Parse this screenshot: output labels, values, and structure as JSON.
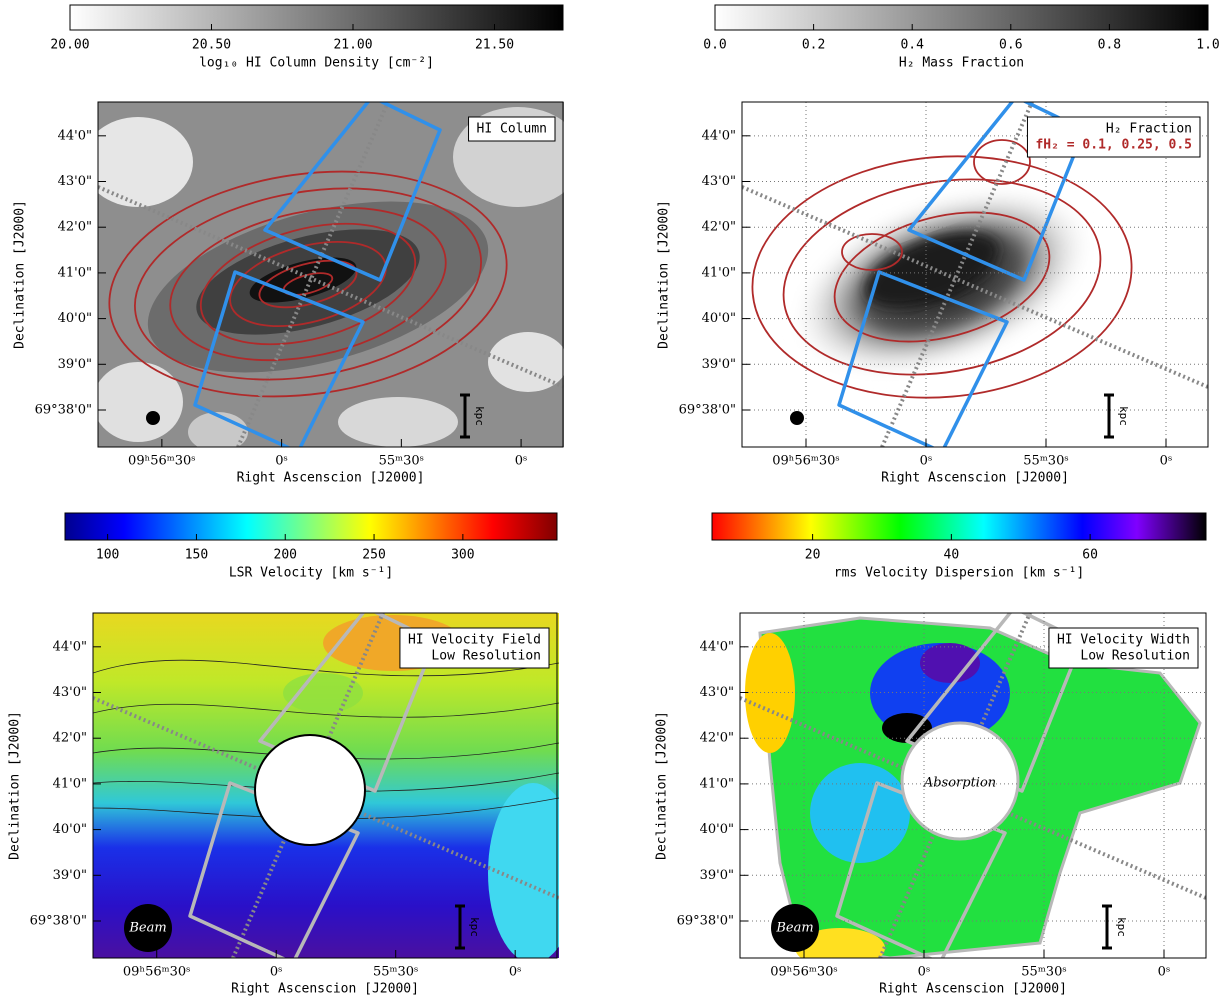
{
  "chart_data": [
    {
      "type": "image",
      "title": "HI Column",
      "zlabel": "log₁₀ HI Column Density [cm⁻²]",
      "zlim": [
        20,
        21.742
      ],
      "zticks": [
        {
          "value": 20,
          "label": "20.00"
        },
        {
          "value": 20.5,
          "label": "20.50"
        },
        {
          "value": 21,
          "label": "21.00"
        },
        {
          "value": 21.5,
          "label": "21.50"
        }
      ],
      "xlabel": "Right Ascenscion [J2000]",
      "xlim": [
        3406,
        3289.5
      ],
      "xticks": [
        {
          "value": 3390,
          "label": "09ʰ56ᵐ30ˢ"
        },
        {
          "value": 3360,
          "label": "0ˢ"
        },
        {
          "value": 3330,
          "label": "55ᵐ30ˢ"
        },
        {
          "value": 3300,
          "label": "0ˢ"
        }
      ],
      "ylabel": "Declination [J2000]",
      "ylim": [
        37.19,
        44.74
      ],
      "yticks": [
        {
          "value": 38,
          "label": "69°38'0\""
        },
        {
          "value": 39,
          "label": "39'0\""
        },
        {
          "value": 40,
          "label": "40'0\""
        },
        {
          "value": 41,
          "label": "41'0\""
        },
        {
          "value": 42,
          "label": "42'0\""
        },
        {
          "value": 43,
          "label": "43'0\""
        },
        {
          "value": 44,
          "label": "44'0\""
        }
      ],
      "grid": false,
      "scale_label": "kpc"
    },
    {
      "type": "image",
      "title": "H₂ Fraction",
      "contour_label": "fH₂ = 0.1, 0.25, 0.5",
      "zlabel": "H₂ Mass Fraction",
      "zlim": [
        0,
        1
      ],
      "zticks": [
        {
          "value": 0,
          "label": "0.0"
        },
        {
          "value": 0.2,
          "label": "0.2"
        },
        {
          "value": 0.4,
          "label": "0.4"
        },
        {
          "value": 0.6,
          "label": "0.6"
        },
        {
          "value": 0.8,
          "label": "0.8"
        },
        {
          "value": 1,
          "label": "1.0"
        }
      ],
      "xlabel": "Right Ascenscion [J2000]",
      "xlim": [
        3406,
        3289.5
      ],
      "xticks": [
        {
          "value": 3390,
          "label": "09ʰ56ᵐ30ˢ"
        },
        {
          "value": 3360,
          "label": "0ˢ"
        },
        {
          "value": 3330,
          "label": "55ᵐ30ˢ"
        },
        {
          "value": 3300,
          "label": "0ˢ"
        }
      ],
      "ylabel": "Declination [J2000]",
      "ylim": [
        37.19,
        44.74
      ],
      "yticks": [
        {
          "value": 38,
          "label": "69°38'0\""
        },
        {
          "value": 39,
          "label": "39'0\""
        },
        {
          "value": 40,
          "label": "40'0\""
        },
        {
          "value": 41,
          "label": "41'0\""
        },
        {
          "value": 42,
          "label": "42'0\""
        },
        {
          "value": 43,
          "label": "43'0\""
        },
        {
          "value": 44,
          "label": "44'0\""
        }
      ],
      "grid": true,
      "scale_label": "kpc"
    },
    {
      "type": "image",
      "title": "HI Velocity Field",
      "subtitle": "Low Resolution",
      "zlabel": "LSR Velocity [km s⁻¹]",
      "zlim": [
        76,
        353
      ],
      "zticks": [
        100,
        150,
        200,
        250,
        300
      ],
      "xlabel": "Right Ascenscion [J2000]",
      "xlim": [
        3406,
        3289.5
      ],
      "xticks": [
        {
          "value": 3390,
          "label": "09ʰ56ᵐ30ˢ"
        },
        {
          "value": 3360,
          "label": "0ˢ"
        },
        {
          "value": 3330,
          "label": "55ᵐ30ˢ"
        },
        {
          "value": 3300,
          "label": "0ˢ"
        }
      ],
      "ylabel": "Declination [J2000]",
      "ylim": [
        37.19,
        44.74
      ],
      "yticks": [
        {
          "value": 38,
          "label": "69°38'0\""
        },
        {
          "value": 39,
          "label": "39'0\""
        },
        {
          "value": 40,
          "label": "40'0\""
        },
        {
          "value": 41,
          "label": "41'0\""
        },
        {
          "value": 42,
          "label": "42'0\""
        },
        {
          "value": 43,
          "label": "43'0\""
        },
        {
          "value": 44,
          "label": "44'0\""
        }
      ],
      "grid": false,
      "beam_label": "Beam",
      "scale_label": "kpc"
    },
    {
      "type": "image",
      "title": "HI Velocity Width",
      "subtitle": "Low Resolution",
      "zlabel": "rms Velocity Dispersion [km s⁻¹]",
      "zlim": [
        5.5,
        76.7
      ],
      "zticks": [
        20,
        40,
        60
      ],
      "xlabel": "Right Ascenscion [J2000]",
      "xlim": [
        3406,
        3289.5
      ],
      "xticks": [
        {
          "value": 3390,
          "label": "09ʰ56ᵐ30ˢ"
        },
        {
          "value": 3360,
          "label": "0ˢ"
        },
        {
          "value": 3330,
          "label": "55ᵐ30ˢ"
        },
        {
          "value": 3300,
          "label": "0ˢ"
        }
      ],
      "ylabel": "Declination [J2000]",
      "ylim": [
        37.19,
        44.74
      ],
      "yticks": [
        {
          "value": 38,
          "label": "69°38'0\""
        },
        {
          "value": 39,
          "label": "39'0\""
        },
        {
          "value": 40,
          "label": "40'0\""
        },
        {
          "value": 41,
          "label": "41'0\""
        },
        {
          "value": 42,
          "label": "42'0\""
        },
        {
          "value": 43,
          "label": "43'0\""
        },
        {
          "value": 44,
          "label": "44'0\""
        }
      ],
      "grid": true,
      "beam_label": "Beam",
      "hole_label": "Absorption",
      "scale_label": "kpc"
    }
  ]
}
